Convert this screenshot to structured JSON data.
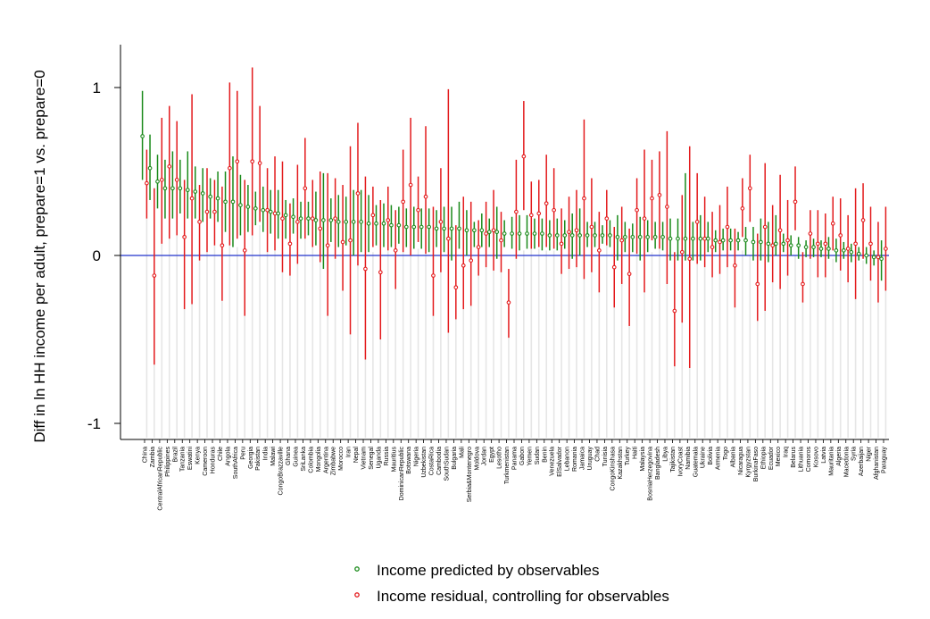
{
  "chart_data": {
    "type": "scatter",
    "title": "",
    "xlabel": "",
    "ylabel": "Diff in ln HH income per adult, prepare=1 vs. prepare=0",
    "ylim": [
      -1.1,
      1.25
    ],
    "yticks": [
      -1,
      0,
      1
    ],
    "ytick_labels": [
      "-1",
      "0",
      "1"
    ],
    "reference_line": 0,
    "grid": false,
    "legend_position": "bottom",
    "colors": {
      "predicted": "#1a8a1a",
      "residual": "#e31a1c",
      "reference": "#2233cc",
      "background_bar": "#e6e6e6"
    },
    "categories": [
      "China",
      "Zambia",
      "CentralAfricanRepublic",
      "Philippines",
      "Brazil",
      "Tanzania",
      "Eswatini",
      "Kenya",
      "Cameroon",
      "Honduras",
      "Chile",
      "Angola",
      "SouthAfrica",
      "Peru",
      "Georgia",
      "Pakistan",
      "India",
      "Malawi",
      "CongoBrazzaville",
      "Ghana",
      "Guinea",
      "SriLanka",
      "Colombia",
      "Mongolia",
      "Argentina",
      "Zimbabwe",
      "Morocco",
      "Iran",
      "Nepal",
      "Vietnam",
      "Senegal",
      "Uganda",
      "Russia",
      "Mauritius",
      "DominicanRepublic",
      "Botswana",
      "Nigeria",
      "Uzbekistan",
      "CostaRica",
      "Cambodia",
      "SouthSudan",
      "Bulgaria",
      "Mali",
      "Serbia&Montenegro",
      "Moldova",
      "Jordan",
      "Egypt",
      "Lesotho",
      "Turkmenistan",
      "Panama",
      "Gabon",
      "Yemen",
      "Sudan",
      "Benin",
      "Venezuela",
      "ElSalvador",
      "Lebanon",
      "Romania",
      "Jamaica",
      "Uruguay",
      "Chad",
      "Tunisia",
      "CongoKinshasa",
      "Kazakhstan",
      "Turkey",
      "Haiti",
      "Malaysia",
      "BosniaHerzegovina",
      "Bangladesh",
      "Libya",
      "Tajikistan",
      "IvoryCoast",
      "Namibia",
      "Guatemala",
      "Ukraine",
      "Bolivia",
      "Armenia",
      "Togo",
      "Albania",
      "Nicaragua",
      "Kyrgyzstan",
      "BurkinaFaso",
      "Ethiopia",
      "Ecuador",
      "Mexico",
      "Iraq",
      "Belarus",
      "Lithuania",
      "Comoros",
      "Kosovo",
      "Latvia",
      "Mauritania",
      "Algeria",
      "Macedonia",
      "Syria",
      "Azerbaijan",
      "Niger",
      "Afghanistan",
      "Paraguay"
    ],
    "series": [
      {
        "name": "Income predicted by observables",
        "values": [
          0.71,
          0.52,
          0.44,
          0.4,
          0.4,
          0.4,
          0.39,
          0.38,
          0.37,
          0.35,
          0.34,
          0.32,
          0.32,
          0.3,
          0.29,
          0.28,
          0.27,
          0.26,
          0.25,
          0.24,
          0.23,
          0.22,
          0.22,
          0.21,
          0.21,
          0.21,
          0.2,
          0.2,
          0.2,
          0.2,
          0.19,
          0.19,
          0.19,
          0.18,
          0.18,
          0.17,
          0.17,
          0.17,
          0.17,
          0.16,
          0.16,
          0.16,
          0.16,
          0.15,
          0.15,
          0.15,
          0.14,
          0.14,
          0.13,
          0.13,
          0.13,
          0.13,
          0.13,
          0.13,
          0.12,
          0.12,
          0.12,
          0.12,
          0.12,
          0.12,
          0.12,
          0.12,
          0.12,
          0.11,
          0.11,
          0.11,
          0.11,
          0.11,
          0.11,
          0.11,
          0.1,
          0.1,
          0.1,
          0.1,
          0.1,
          0.1,
          0.09,
          0.09,
          0.09,
          0.09,
          0.09,
          0.08,
          0.08,
          0.07,
          0.07,
          0.07,
          0.06,
          0.06,
          0.05,
          0.05,
          0.04,
          0.04,
          0.03,
          0.03,
          0.02,
          0.01,
          0.0,
          -0.01,
          -0.02
        ],
        "lower": [
          0.45,
          0.33,
          0.28,
          0.22,
          0.22,
          0.25,
          0.22,
          0.22,
          0.2,
          0.22,
          0.2,
          0.14,
          0.05,
          0.12,
          0.14,
          0.18,
          0.14,
          0.13,
          0.1,
          0.1,
          0.13,
          0.1,
          0.12,
          0.06,
          -0.08,
          0.08,
          0.05,
          0.06,
          0.0,
          0.02,
          0.02,
          0.06,
          0.05,
          0.05,
          0.07,
          0.05,
          0.04,
          0.04,
          0.02,
          0.05,
          0.02,
          -0.03,
          0.04,
          0.0,
          0.05,
          0.05,
          0.05,
          -0.02,
          0.05,
          0.04,
          0.03,
          0.04,
          0.04,
          0.03,
          0.03,
          0.03,
          0.04,
          -0.02,
          0.0,
          0.05,
          0.05,
          0.07,
          0.05,
          -0.03,
          0.02,
          0.02,
          -0.03,
          0.02,
          0.04,
          0.03,
          -0.03,
          -0.03,
          -0.03,
          -0.03,
          -0.03,
          0.02,
          0.02,
          0.03,
          0.03,
          0.03,
          0.0,
          -0.03,
          -0.03,
          -0.04,
          0.0,
          0.02,
          0.0,
          -0.02,
          -0.01,
          -0.01,
          -0.01,
          -0.02,
          -0.04,
          -0.02,
          -0.04,
          -0.03,
          -0.05,
          -0.06,
          -0.15
        ],
        "upper": [
          0.98,
          0.72,
          0.6,
          0.57,
          0.62,
          0.57,
          0.62,
          0.53,
          0.52,
          0.46,
          0.5,
          0.5,
          0.59,
          0.48,
          0.42,
          0.38,
          0.41,
          0.39,
          0.39,
          0.33,
          0.34,
          0.32,
          0.32,
          0.38,
          0.49,
          0.34,
          0.36,
          0.35,
          0.39,
          0.39,
          0.36,
          0.3,
          0.31,
          0.3,
          0.29,
          0.28,
          0.29,
          0.28,
          0.28,
          0.27,
          0.29,
          0.29,
          0.32,
          0.27,
          0.2,
          0.25,
          0.22,
          0.29,
          0.21,
          0.23,
          0.24,
          0.24,
          0.22,
          0.22,
          0.21,
          0.22,
          0.21,
          0.25,
          0.28,
          0.2,
          0.2,
          0.18,
          0.21,
          0.24,
          0.2,
          0.19,
          0.23,
          0.21,
          0.2,
          0.2,
          0.22,
          0.22,
          0.49,
          0.2,
          0.24,
          0.2,
          0.15,
          0.16,
          0.16,
          0.14,
          0.17,
          0.17,
          0.22,
          0.2,
          0.24,
          0.13,
          0.12,
          0.11,
          0.09,
          0.1,
          0.09,
          0.11,
          0.1,
          0.08,
          0.07,
          0.05,
          0.05,
          0.03,
          0.09
        ]
      },
      {
        "name": "Income residual, controlling for observables",
        "values": [
          0.43,
          -0.12,
          0.45,
          0.53,
          0.45,
          0.11,
          0.34,
          0.2,
          0.26,
          0.26,
          0.06,
          0.52,
          0.56,
          0.03,
          0.56,
          0.55,
          0.27,
          0.25,
          0.22,
          0.07,
          0.2,
          0.4,
          0.22,
          0.16,
          0.06,
          0.22,
          0.08,
          0.09,
          0.37,
          -0.08,
          0.24,
          -0.1,
          0.21,
          0.03,
          0.32,
          0.42,
          0.27,
          0.35,
          -0.12,
          0.2,
          0.1,
          -0.19,
          -0.06,
          -0.03,
          0.05,
          0.13,
          0.15,
          0.09,
          -0.28,
          0.26,
          0.59,
          0.24,
          0.25,
          0.31,
          0.27,
          0.07,
          0.14,
          0.15,
          0.34,
          0.17,
          0.03,
          0.22,
          -0.07,
          0.09,
          -0.11,
          0.27,
          0.22,
          0.34,
          0.36,
          0.29,
          -0.33,
          0.02,
          -0.02,
          0.2,
          0.1,
          0.05,
          0.08,
          0.17,
          -0.06,
          0.28,
          0.4,
          -0.17,
          0.17,
          0.06,
          0.15,
          0.09,
          0.32,
          -0.17,
          0.13,
          0.07,
          0.07,
          0.19,
          0.12,
          0.04,
          0.07,
          0.21,
          0.07,
          -0.01,
          0.04
        ],
        "lower": [
          0.22,
          -0.65,
          0.07,
          0.1,
          0.12,
          -0.32,
          -0.29,
          -0.03,
          0.02,
          0.06,
          -0.27,
          0.06,
          0.1,
          -0.36,
          0.12,
          0.2,
          0.02,
          0.03,
          -0.1,
          -0.12,
          -0.05,
          0.1,
          0.05,
          -0.04,
          -0.36,
          -0.02,
          -0.21,
          -0.47,
          -0.06,
          -0.62,
          0.05,
          -0.5,
          0.03,
          -0.2,
          0.02,
          0.0,
          0.08,
          0.01,
          -0.36,
          -0.1,
          -0.46,
          -0.38,
          -0.32,
          -0.3,
          -0.12,
          -0.07,
          -0.09,
          -0.1,
          -0.49,
          -0.02,
          0.27,
          0.04,
          0.05,
          0.05,
          0.04,
          -0.11,
          -0.08,
          -0.07,
          -0.14,
          -0.1,
          -0.22,
          0.06,
          -0.31,
          -0.17,
          -0.42,
          0.01,
          -0.22,
          0.09,
          0.04,
          -0.17,
          -0.66,
          -0.4,
          -0.67,
          -0.05,
          -0.07,
          -0.13,
          -0.11,
          -0.07,
          -0.31,
          0.11,
          0.2,
          -0.39,
          -0.33,
          -0.16,
          -0.2,
          -0.12,
          0.15,
          -0.28,
          -0.02,
          -0.13,
          -0.13,
          0.03,
          -0.09,
          -0.16,
          -0.26,
          -0.02,
          -0.15,
          -0.28,
          -0.21
        ],
        "upper": [
          0.63,
          0.4,
          0.82,
          0.89,
          0.8,
          0.45,
          0.96,
          0.42,
          0.52,
          0.45,
          0.41,
          1.03,
          0.98,
          0.45,
          1.12,
          0.89,
          0.52,
          0.59,
          0.56,
          0.31,
          0.54,
          0.7,
          0.45,
          0.5,
          0.49,
          0.46,
          0.42,
          0.65,
          0.79,
          0.47,
          0.41,
          0.33,
          0.41,
          0.27,
          0.63,
          0.82,
          0.47,
          0.77,
          0.29,
          0.52,
          0.99,
          0.18,
          0.35,
          0.32,
          0.21,
          0.32,
          0.39,
          0.26,
          -0.08,
          0.57,
          0.92,
          0.44,
          0.45,
          0.6,
          0.52,
          0.28,
          0.35,
          0.39,
          0.81,
          0.46,
          0.26,
          0.39,
          0.17,
          0.29,
          0.16,
          0.46,
          0.63,
          0.57,
          0.62,
          0.74,
          0.02,
          0.36,
          0.65,
          0.49,
          0.35,
          0.26,
          0.3,
          0.41,
          0.16,
          0.46,
          0.6,
          0.13,
          0.55,
          0.3,
          0.48,
          0.33,
          0.53,
          0.02,
          0.27,
          0.27,
          0.25,
          0.35,
          0.34,
          0.24,
          0.4,
          0.43,
          0.29,
          0.2,
          0.29
        ]
      }
    ]
  }
}
